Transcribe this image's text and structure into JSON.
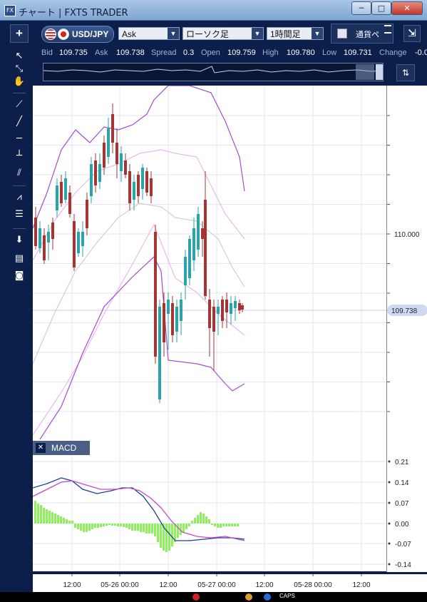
{
  "window": {
    "icon_text": "FX",
    "title": "チャート | FXTS TRADER",
    "minimize": "─",
    "maximize": "□",
    "close": "✕"
  },
  "toolbar": {
    "plus": "+",
    "symbol": "USD/JPY",
    "price_type": "Ask",
    "chart_type": "ローソク足",
    "timeframe": "1時間足",
    "compare_label": "通貨ペ",
    "dropdown_arrow": "▼"
  },
  "quote": {
    "bid_label": "Bid",
    "bid": "109.735",
    "ask_label": "Ask",
    "ask": "109.738",
    "spread_label": "Spread",
    "spread": "0.3",
    "open_label": "Open",
    "open": "109.759",
    "high_label": "High",
    "high": "109.780",
    "low_label": "Low",
    "low": "109.731",
    "change_label": "Change",
    "change": "-0.0"
  },
  "price_axis": {
    "label_110": "110.000",
    "current": "109.738"
  },
  "macd": {
    "title": "MACD",
    "close": "✕",
    "ticks": [
      "0.21",
      "0.14",
      "0.07",
      "0.00",
      "-0.07",
      "-0.14"
    ]
  },
  "time_axis": {
    "ticks": [
      "12:00",
      "05-26 00:00",
      "12:00",
      "05-27 00:00",
      "12:00",
      "05-28 00:00",
      "12:00"
    ]
  },
  "taskbar": {
    "caps": "CAPS"
  },
  "chart_data": {
    "type": "candlestick",
    "symbol": "USD/JPY",
    "timeframe": "1時間足",
    "price_range": [
      109.45,
      110.55
    ],
    "current_price": 109.738,
    "indicators": [
      "Bollinger Bands",
      "MACD"
    ],
    "macd_range": [
      -0.16,
      0.23
    ],
    "x_ticks": [
      "12:00",
      "05-26 00:00",
      "12:00",
      "05-27 00:00",
      "12:00",
      "05-28 00:00",
      "12:00"
    ],
    "y_ticks_macd": [
      0.21,
      0.14,
      0.07,
      0.0,
      -0.07,
      -0.14
    ]
  }
}
